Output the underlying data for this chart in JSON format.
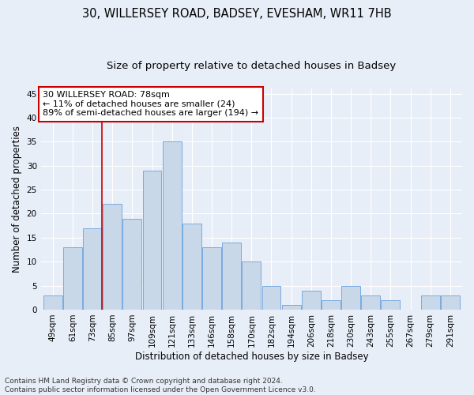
{
  "title_line1": "30, WILLERSEY ROAD, BADSEY, EVESHAM, WR11 7HB",
  "title_line2": "Size of property relative to detached houses in Badsey",
  "xlabel": "Distribution of detached houses by size in Badsey",
  "ylabel": "Number of detached properties",
  "footnote": "Contains HM Land Registry data © Crown copyright and database right 2024.\nContains public sector information licensed under the Open Government Licence v3.0.",
  "categories": [
    "49sqm",
    "61sqm",
    "73sqm",
    "85sqm",
    "97sqm",
    "109sqm",
    "121sqm",
    "133sqm",
    "146sqm",
    "158sqm",
    "170sqm",
    "182sqm",
    "194sqm",
    "206sqm",
    "218sqm",
    "230sqm",
    "243sqm",
    "255sqm",
    "267sqm",
    "279sqm",
    "291sqm"
  ],
  "values": [
    3,
    13,
    17,
    22,
    19,
    29,
    35,
    18,
    13,
    14,
    10,
    5,
    1,
    4,
    2,
    5,
    3,
    2,
    0,
    3,
    3
  ],
  "bar_color": "#c8d8e8",
  "bar_edge_color": "#7aabe0",
  "annotation_text": "30 WILLERSEY ROAD: 78sqm\n← 11% of detached houses are smaller (24)\n89% of semi-detached houses are larger (194) →",
  "annotation_box_color": "#ffffff",
  "annotation_box_edge_color": "#cc0000",
  "red_line_x": 2.47,
  "ylim": [
    0,
    46
  ],
  "yticks": [
    0,
    5,
    10,
    15,
    20,
    25,
    30,
    35,
    40,
    45
  ],
  "background_color": "#e8eef8",
  "grid_color": "#ffffff",
  "title_fontsize": 10.5,
  "subtitle_fontsize": 9.5,
  "axis_label_fontsize": 8.5,
  "tick_fontsize": 7.5
}
